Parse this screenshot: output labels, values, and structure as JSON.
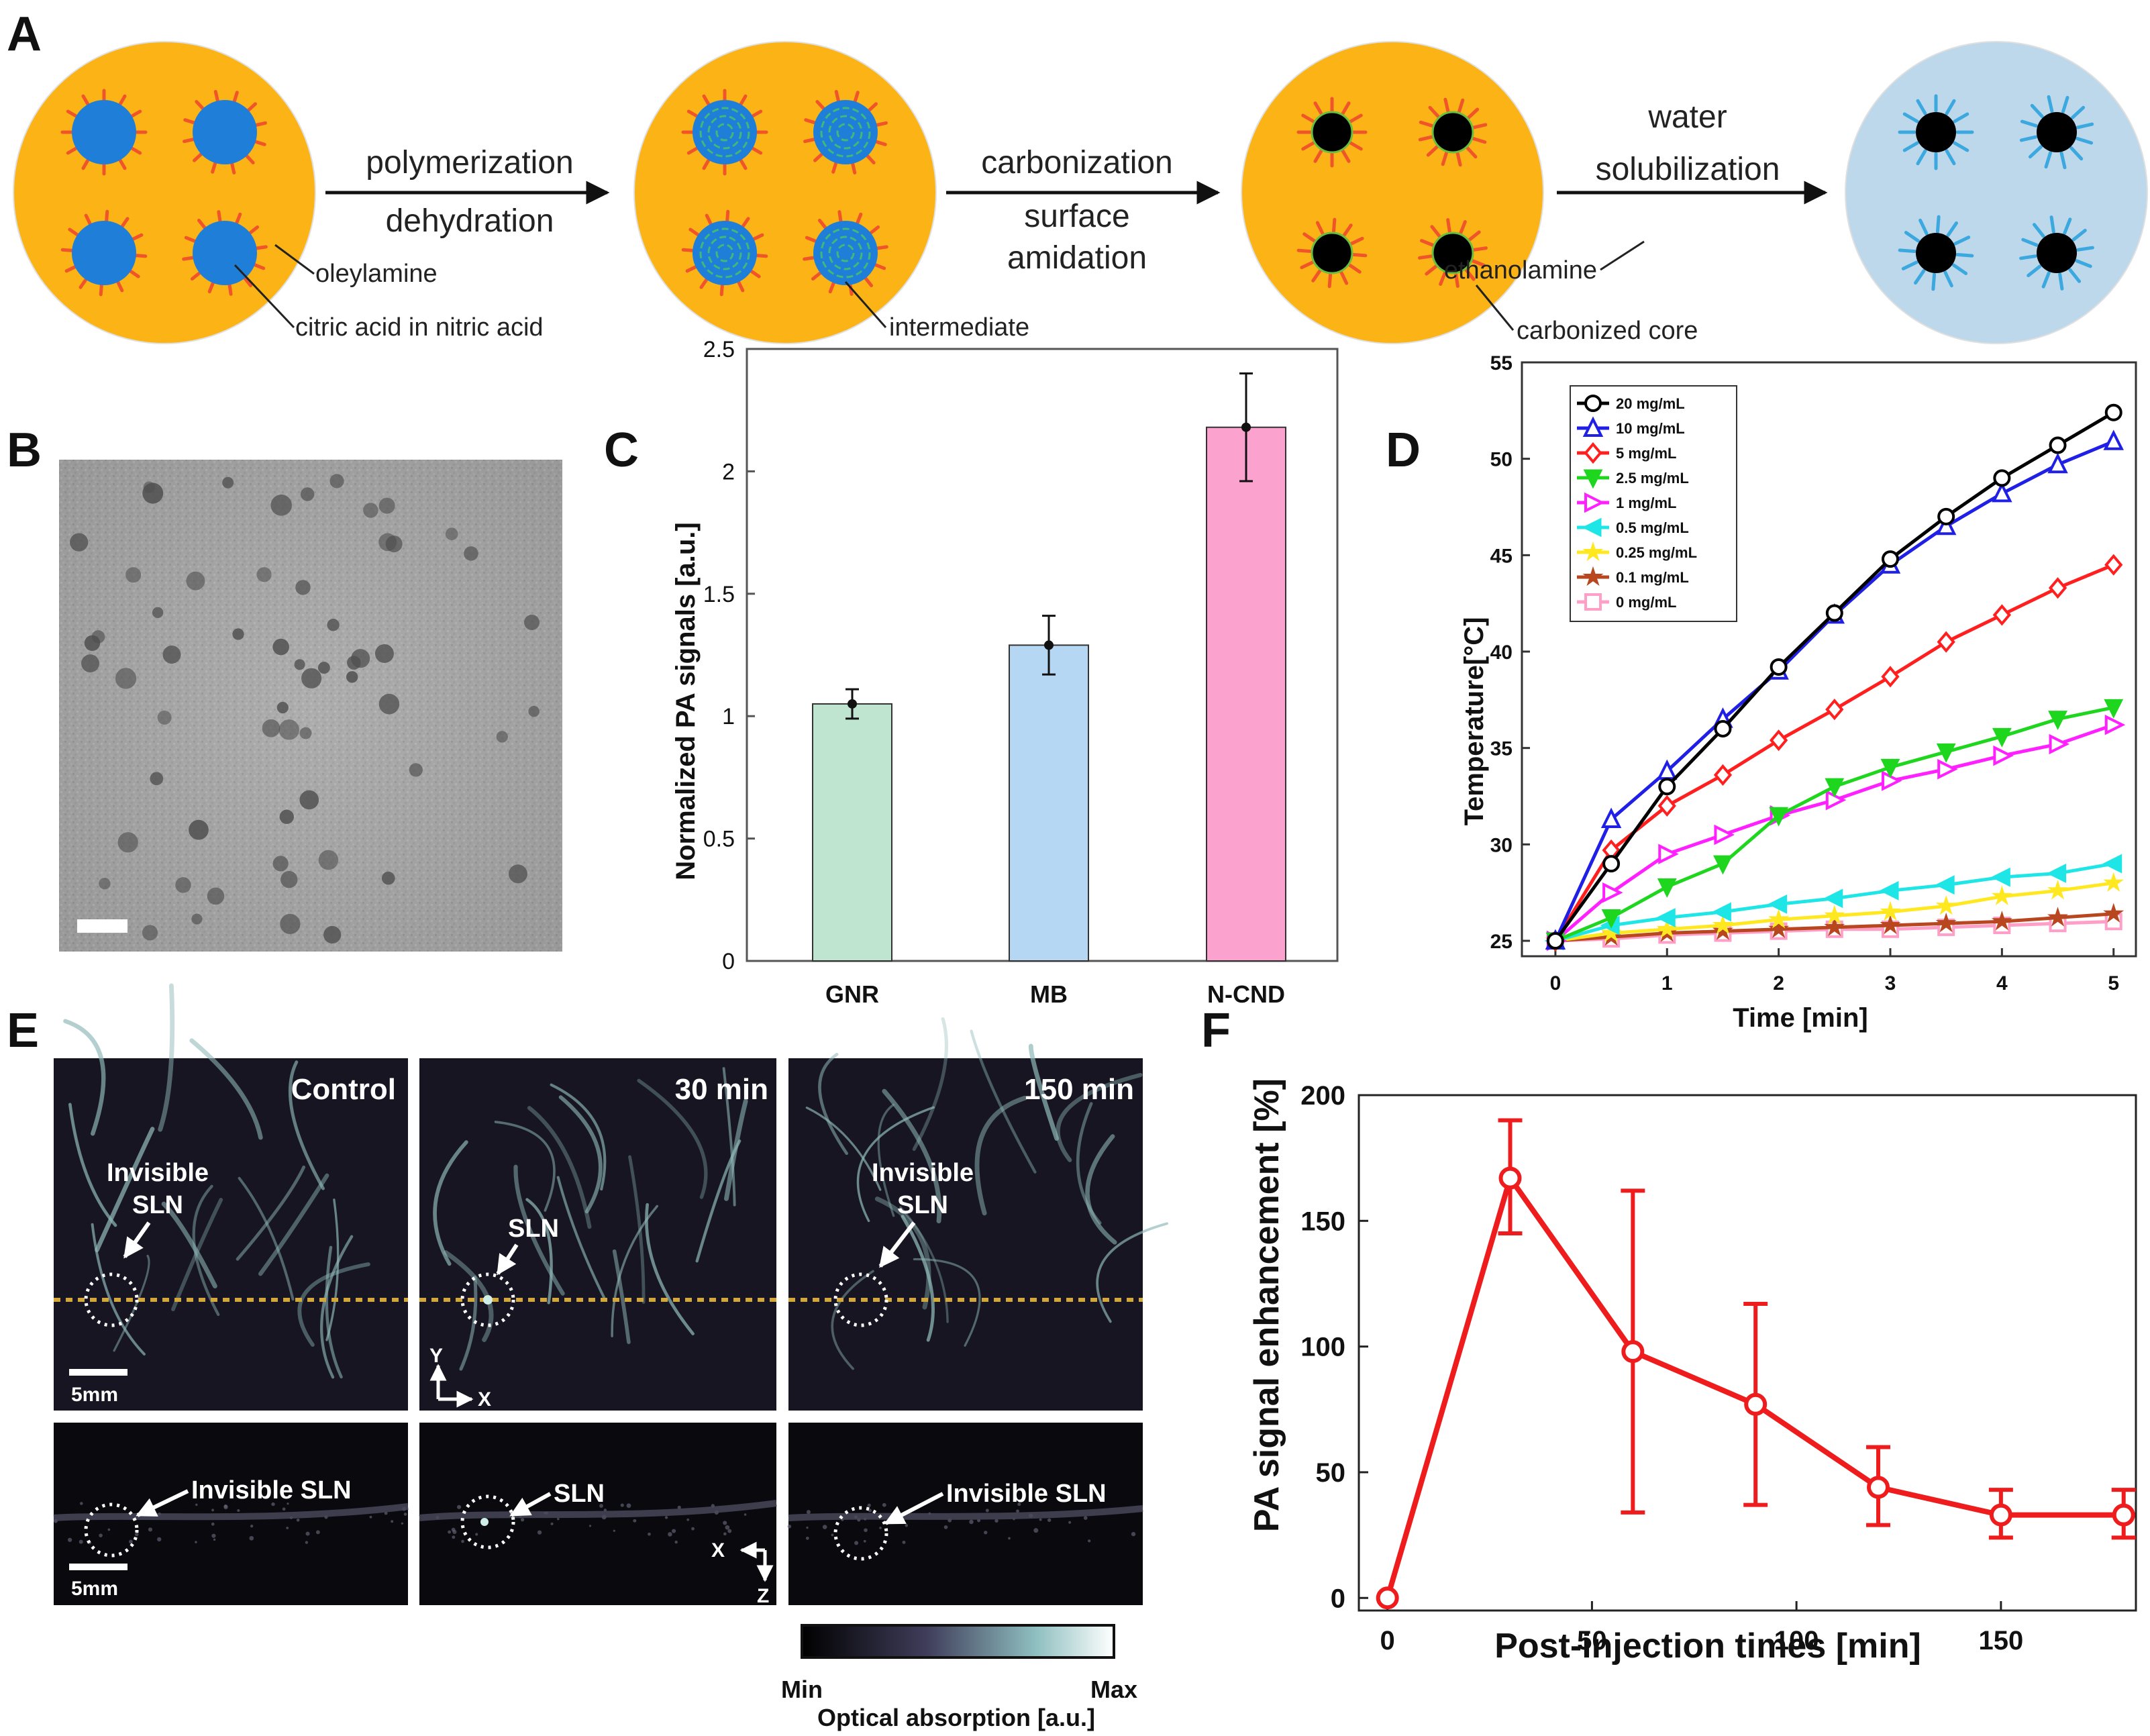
{
  "panels": {
    "A": "A",
    "B": "B",
    "C": "C",
    "D": "D",
    "E": "E",
    "F": "F"
  },
  "panelA": {
    "step1": {
      "line1": "polymerization",
      "line2": "dehydration"
    },
    "step2": {
      "line1": "carbonization",
      "line2": "surface",
      "line3": "amidation"
    },
    "step3": {
      "line1": "water",
      "line2": "solubilization"
    },
    "callouts": {
      "oleylamine": "oleylamine",
      "citric": "citric acid in nitric acid",
      "intermediate": "intermediate",
      "core": "carbonized core",
      "ethanolamine": "ethanolamine"
    },
    "colors": {
      "oil": "#fbb316",
      "droplet": "#1f7fd8",
      "ligand": "#f0552a",
      "core": "#000000",
      "water": "#bcd8ea",
      "ligand_blue": "#3ba8e0"
    }
  },
  "panelC": {
    "chart_data": {
      "type": "bar",
      "categories": [
        "GNR",
        "MB",
        "N-CND"
      ],
      "values": [
        1.05,
        1.29,
        2.18
      ],
      "errors": [
        0.06,
        0.12,
        0.22
      ],
      "ylabel": "Normalized PA signals [a.u.]",
      "ylim": [
        0,
        2.5
      ],
      "yticks": [
        "0",
        "0.5",
        "1",
        "1.5",
        "2",
        "2.5"
      ],
      "colors": [
        "#bfe4cf",
        "#b6d7f3",
        "#fba2cf"
      ]
    }
  },
  "panelD": {
    "chart_data": {
      "type": "line",
      "xlabel": "Time [min]",
      "ylabel": "Temperature[°C]",
      "x": [
        0,
        0.5,
        1,
        1.5,
        2,
        2.5,
        3,
        3.5,
        4,
        4.5,
        5
      ],
      "xlim": [
        -0.3,
        5.2
      ],
      "ylim": [
        24.2,
        55
      ],
      "xticks": [
        "0",
        "1",
        "2",
        "3",
        "4",
        "5"
      ],
      "yticks": [
        "25",
        "30",
        "35",
        "40",
        "45",
        "50",
        "55"
      ],
      "series": [
        {
          "name": "20 mg/mL",
          "color": "#000000",
          "marker": "circle",
          "values": [
            25,
            29,
            33,
            36,
            39.2,
            42,
            44.8,
            47,
            49,
            50.7,
            52.4
          ]
        },
        {
          "name": "10 mg/mL",
          "color": "#1f1fe6",
          "marker": "triangle-up",
          "values": [
            25,
            31.3,
            33.8,
            36.5,
            39,
            41.9,
            44.5,
            46.5,
            48.2,
            49.7,
            50.9
          ]
        },
        {
          "name": "5 mg/mL",
          "color": "#ff1f1f",
          "marker": "diamond",
          "values": [
            25,
            29.7,
            32,
            33.6,
            35.4,
            37,
            38.7,
            40.5,
            41.9,
            43.3,
            44.5
          ]
        },
        {
          "name": "2.5 mg/mL",
          "color": "#1fd61f",
          "marker": "triangle-down",
          "values": [
            25,
            26.2,
            27.8,
            29,
            31.5,
            33,
            34,
            34.8,
            35.6,
            36.5,
            37.1
          ]
        },
        {
          "name": "1 mg/mL",
          "color": "#ff1fff",
          "marker": "triangle-right",
          "values": [
            25,
            27.5,
            29.5,
            30.5,
            31.5,
            32.3,
            33.3,
            33.9,
            34.6,
            35.2,
            36.2
          ]
        },
        {
          "name": "0.5 mg/mL",
          "color": "#1fe6e6",
          "marker": "triangle-left",
          "values": [
            25,
            25.8,
            26.2,
            26.5,
            26.9,
            27.2,
            27.6,
            27.9,
            28.3,
            28.5,
            29
          ]
        },
        {
          "name": "0.25 mg/mL",
          "color": "#ffe81f",
          "marker": "star",
          "values": [
            25,
            25.4,
            25.6,
            25.8,
            26.1,
            26.3,
            26.5,
            26.8,
            27.3,
            27.6,
            28
          ]
        },
        {
          "name": "0.1 mg/mL",
          "color": "#b8461f",
          "marker": "star",
          "values": [
            25,
            25.2,
            25.4,
            25.5,
            25.6,
            25.7,
            25.8,
            25.9,
            26,
            26.2,
            26.4
          ]
        },
        {
          "name": "0 mg/mL",
          "color": "#ff9fc8",
          "marker": "square",
          "values": [
            25,
            25.1,
            25.3,
            25.4,
            25.5,
            25.6,
            25.6,
            25.7,
            25.8,
            25.9,
            26
          ]
        }
      ]
    }
  },
  "panelE": {
    "titles": [
      "Control",
      "30 min",
      "150 min"
    ],
    "top_labels": {
      "invisible1": "Invisible",
      "sln1": "SLN",
      "sln": "SLN"
    },
    "bottom_labels": {
      "invisible": "Invisible  SLN",
      "sln": "SLN"
    },
    "scale": "5mm",
    "axes": {
      "y": "Y",
      "x": "X",
      "z": "Z"
    },
    "colorbar": {
      "min": "Min",
      "max": "Max",
      "label": "Optical  absorption [a.u.]"
    }
  },
  "panelF": {
    "chart_data": {
      "type": "line",
      "xlabel": "Post-injection times [min]",
      "ylabel": "PA signal enhancement [%]",
      "x": [
        0,
        30,
        60,
        90,
        120,
        150,
        180
      ],
      "values": [
        0,
        167,
        98,
        77,
        44,
        33,
        33
      ],
      "err_upper": [
        0,
        190,
        162,
        117,
        60,
        43,
        43
      ],
      "err_lower": [
        0,
        145,
        34,
        37,
        29,
        24,
        24
      ],
      "xlim": [
        -7,
        183
      ],
      "ylim": [
        -5,
        200
      ],
      "xticks": [
        "0",
        "50",
        "100",
        "150"
      ],
      "yticks": [
        "0",
        "50",
        "100",
        "150",
        "200"
      ],
      "color": "#ee1c1c"
    }
  }
}
